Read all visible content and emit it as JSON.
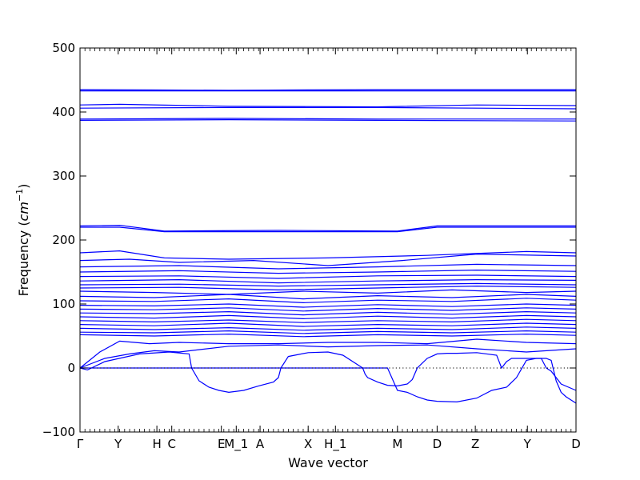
{
  "chart_data": {
    "type": "line",
    "title": "",
    "xlabel": "Wave vector",
    "ylabel_prefix": "Frequency (",
    "ylabel_unit_base": "cm",
    "ylabel_unit_exp": "−1",
    "ylabel_suffix": ")",
    "ylim": [
      -100,
      500
    ],
    "yticks": [
      "−100",
      "0",
      "100",
      "200",
      "300",
      "400",
      "500"
    ],
    "xlim": [
      0,
      1
    ],
    "grid": false,
    "line_color": "#0000ff",
    "zero_line": {
      "y": 0,
      "style": "dotted",
      "color": "#000000"
    },
    "xticks": [
      {
        "label": "Γ",
        "x": 0.0
      },
      {
        "label": "Y",
        "x": 0.077
      },
      {
        "label": "H",
        "x": 0.155
      },
      {
        "label": "C",
        "x": 0.185
      },
      {
        "label": "E",
        "x": 0.285
      },
      {
        "label": "M_1",
        "x": 0.315
      },
      {
        "label": "A",
        "x": 0.363
      },
      {
        "label": "X",
        "x": 0.46
      },
      {
        "label": "H_1",
        "x": 0.515
      },
      {
        "label": "M",
        "x": 0.64
      },
      {
        "label": "D",
        "x": 0.72
      },
      {
        "label": "Z",
        "x": 0.797
      },
      {
        "label": "Y",
        "x": 0.902
      },
      {
        "label": "D",
        "x": 1.0
      }
    ],
    "series": [
      {
        "x": [
          0,
          0.3,
          0.6,
          1
        ],
        "y": [
          435,
          434,
          435,
          435
        ]
      },
      {
        "x": [
          0,
          0.3,
          0.6,
          1
        ],
        "y": [
          433,
          433,
          433,
          433
        ]
      },
      {
        "x": [
          0,
          0.08,
          0.3,
          0.6,
          0.8,
          1
        ],
        "y": [
          411,
          412,
          409,
          408,
          411,
          410
        ]
      },
      {
        "x": [
          0,
          0.3,
          0.6,
          1
        ],
        "y": [
          406,
          407,
          407,
          405
        ]
      },
      {
        "x": [
          0,
          0.3,
          0.6,
          1
        ],
        "y": [
          389,
          390,
          389,
          389
        ]
      },
      {
        "x": [
          0,
          0.3,
          0.6,
          1
        ],
        "y": [
          387,
          388,
          387,
          386
        ]
      },
      {
        "x": [
          0,
          0.08,
          0.17,
          0.4,
          0.64,
          0.72,
          1
        ],
        "y": [
          222,
          223,
          214,
          215,
          214,
          222,
          222
        ]
      },
      {
        "x": [
          0,
          0.08,
          0.17,
          0.4,
          0.64,
          0.72,
          1
        ],
        "y": [
          220,
          220,
          213,
          213,
          213,
          220,
          220
        ]
      },
      {
        "x": [
          0,
          0.08,
          0.17,
          0.3,
          0.5,
          0.7,
          0.9,
          1
        ],
        "y": [
          180,
          183,
          172,
          170,
          172,
          176,
          182,
          180
        ]
      },
      {
        "x": [
          0,
          0.1,
          0.2,
          0.35,
          0.5,
          0.65,
          0.8,
          1
        ],
        "y": [
          168,
          170,
          165,
          168,
          160,
          168,
          178,
          175
        ]
      },
      {
        "x": [
          0,
          0.2,
          0.4,
          0.6,
          0.8,
          1
        ],
        "y": [
          158,
          160,
          155,
          158,
          162,
          160
        ]
      },
      {
        "x": [
          0,
          0.2,
          0.4,
          0.6,
          0.8,
          1
        ],
        "y": [
          150,
          152,
          148,
          150,
          153,
          151
        ]
      },
      {
        "x": [
          0,
          0.2,
          0.4,
          0.6,
          0.8,
          1
        ],
        "y": [
          143,
          144,
          140,
          144,
          145,
          143
        ]
      },
      {
        "x": [
          0,
          0.2,
          0.4,
          0.6,
          0.8,
          1
        ],
        "y": [
          136,
          138,
          133,
          136,
          138,
          137
        ]
      },
      {
        "x": [
          0,
          0.2,
          0.4,
          0.6,
          0.8,
          1
        ],
        "y": [
          130,
          131,
          128,
          130,
          132,
          130
        ]
      },
      {
        "x": [
          0,
          0.2,
          0.4,
          0.6,
          0.8,
          1
        ],
        "y": [
          125,
          126,
          122,
          125,
          128,
          126
        ]
      },
      {
        "x": [
          0,
          0.15,
          0.3,
          0.45,
          0.6,
          0.75,
          0.9,
          1
        ],
        "y": [
          120,
          118,
          115,
          120,
          117,
          122,
          118,
          120
        ]
      },
      {
        "x": [
          0,
          0.15,
          0.3,
          0.45,
          0.6,
          0.75,
          0.9,
          1
        ],
        "y": [
          112,
          110,
          115,
          108,
          113,
          110,
          115,
          112
        ]
      },
      {
        "x": [
          0,
          0.15,
          0.3,
          0.45,
          0.6,
          0.75,
          0.9,
          1
        ],
        "y": [
          105,
          104,
          108,
          102,
          106,
          104,
          109,
          106
        ]
      },
      {
        "x": [
          0,
          0.15,
          0.3,
          0.45,
          0.6,
          0.75,
          0.9,
          1
        ],
        "y": [
          98,
          97,
          100,
          95,
          99,
          96,
          100,
          98
        ]
      },
      {
        "x": [
          0,
          0.15,
          0.3,
          0.45,
          0.6,
          0.75,
          0.9,
          1
        ],
        "y": [
          92,
          91,
          94,
          89,
          93,
          90,
          94,
          92
        ]
      },
      {
        "x": [
          0,
          0.15,
          0.3,
          0.45,
          0.6,
          0.75,
          0.9,
          1
        ],
        "y": [
          86,
          85,
          88,
          83,
          87,
          84,
          88,
          86
        ]
      },
      {
        "x": [
          0,
          0.15,
          0.3,
          0.45,
          0.6,
          0.75,
          0.9,
          1
        ],
        "y": [
          80,
          78,
          82,
          77,
          81,
          78,
          82,
          80
        ]
      },
      {
        "x": [
          0,
          0.15,
          0.3,
          0.45,
          0.6,
          0.75,
          0.9,
          1
        ],
        "y": [
          74,
          72,
          75,
          71,
          74,
          72,
          76,
          74
        ]
      },
      {
        "x": [
          0,
          0.15,
          0.3,
          0.45,
          0.6,
          0.75,
          0.9,
          1
        ],
        "y": [
          68,
          66,
          70,
          65,
          68,
          66,
          70,
          68
        ]
      },
      {
        "x": [
          0,
          0.15,
          0.3,
          0.45,
          0.6,
          0.75,
          0.9,
          1
        ],
        "y": [
          62,
          60,
          63,
          59,
          62,
          60,
          64,
          62
        ]
      },
      {
        "x": [
          0,
          0.15,
          0.3,
          0.45,
          0.6,
          0.75,
          0.9,
          1
        ],
        "y": [
          56,
          55,
          58,
          54,
          57,
          55,
          58,
          56
        ]
      },
      {
        "x": [
          0,
          0.15,
          0.3,
          0.45,
          0.6,
          0.75,
          0.9,
          1
        ],
        "y": [
          52,
          50,
          53,
          49,
          52,
          50,
          53,
          51
        ]
      },
      {
        "x": [
          0,
          0.04,
          0.08,
          0.14,
          0.2,
          0.3,
          0.4,
          0.5,
          0.6,
          0.7,
          0.8,
          0.9,
          1
        ],
        "y": [
          0,
          25,
          42,
          38,
          40,
          38,
          38,
          40,
          40,
          38,
          45,
          40,
          38
        ]
      },
      {
        "x": [
          0,
          0.05,
          0.1,
          0.15,
          0.2,
          0.3,
          0.4,
          0.5,
          0.6,
          0.7,
          0.8,
          0.9,
          1
        ],
        "y": [
          0,
          15,
          22,
          27,
          25,
          34,
          36,
          33,
          35,
          36,
          30,
          25,
          30
        ]
      },
      {
        "x": [
          0,
          0.015,
          0.05,
          0.12,
          0.18,
          0.22,
          0.225,
          0.24,
          0.26,
          0.28,
          0.3,
          0.33,
          0.36,
          0.39,
          0.4,
          0.405,
          0.42,
          0.46,
          0.5,
          0.53,
          0.57,
          0.575,
          0.58,
          0.6,
          0.62,
          0.64,
          0.66,
          0.67,
          0.68,
          0.7,
          0.72,
          0.74,
          0.76,
          0.8,
          0.84,
          0.85,
          0.86,
          0.87,
          0.9,
          0.93,
          0.94,
          0.95,
          0.97,
          1
        ],
        "y": [
          0,
          -3,
          10,
          22,
          25,
          22,
          0,
          -20,
          -30,
          -35,
          -38,
          -35,
          -28,
          -22,
          -15,
          0,
          18,
          24,
          25,
          20,
          0,
          -10,
          -15,
          -22,
          -27,
          -28,
          -25,
          -18,
          0,
          15,
          22,
          23,
          23,
          24,
          20,
          0,
          10,
          15,
          15,
          15,
          0,
          -5,
          -25,
          -35
        ]
      },
      {
        "x": [
          0,
          0.5,
          0.62,
          0.64,
          0.66,
          0.68,
          0.7,
          0.72,
          0.76,
          0.8,
          0.83,
          0.86,
          0.88,
          0.9,
          0.92,
          0.94,
          0.95,
          0.96,
          0.97,
          0.98,
          1
        ],
        "y": [
          0,
          0,
          0,
          -35,
          -38,
          -45,
          -50,
          -52,
          -53,
          -47,
          -35,
          -30,
          -15,
          12,
          15,
          15,
          12,
          -20,
          -38,
          -45,
          -55
        ]
      }
    ]
  }
}
